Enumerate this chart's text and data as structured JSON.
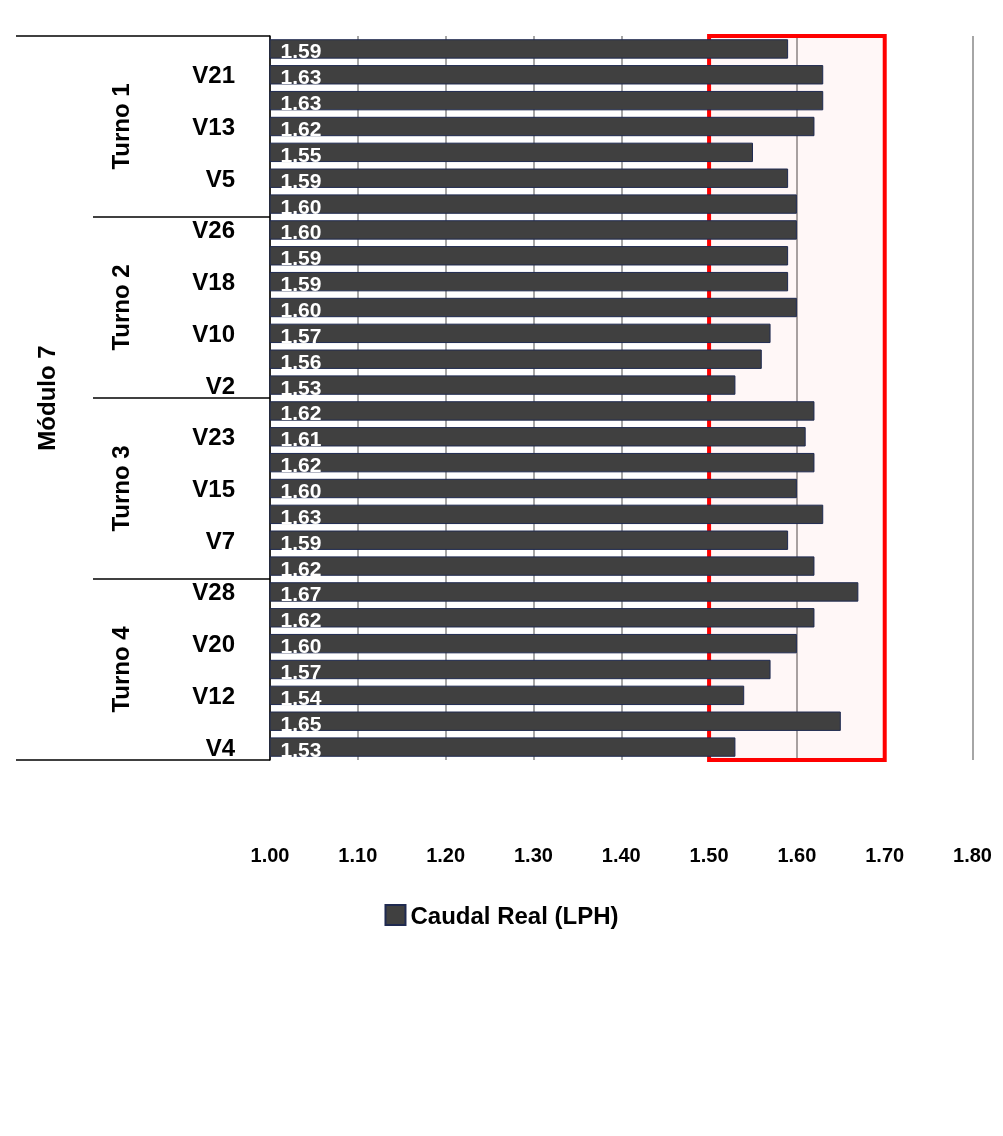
{
  "chart_data": {
    "type": "bar",
    "orientation": "horizontal",
    "categories": [
      null,
      "V21",
      null,
      "V13",
      null,
      "V5",
      null,
      "V26",
      null,
      "V18",
      null,
      "V10",
      null,
      "V2",
      null,
      "V23",
      null,
      "V15",
      null,
      "V7",
      null,
      "V28",
      null,
      "V20",
      null,
      "V12",
      null,
      "V4"
    ],
    "series": [
      {
        "name": "Caudal Real (LPH)",
        "color": "#404040",
        "values": [
          1.59,
          1.63,
          1.63,
          1.62,
          1.55,
          1.59,
          1.6,
          1.6,
          1.59,
          1.59,
          1.6,
          1.57,
          1.56,
          1.53,
          1.62,
          1.61,
          1.62,
          1.6,
          1.63,
          1.59,
          1.62,
          1.67,
          1.62,
          1.6,
          1.57,
          1.54,
          1.65,
          1.53
        ],
        "value_labels": [
          "1.59",
          "1.63",
          "1.63",
          "1.62",
          "1.55",
          "1.59",
          "1.60",
          "1.60",
          "1.59",
          "1.59",
          "1.60",
          "1.57",
          "1.56",
          "1.53",
          "1.62",
          "1.61",
          "1.62",
          "1.60",
          "1.63",
          "1.59",
          "1.62",
          "1.67",
          "1.62",
          "1.60",
          "1.57",
          "1.54",
          "1.65",
          "1.53"
        ]
      }
    ],
    "xlim": [
      1.0,
      1.8
    ],
    "xticks": [
      {
        "value": 1.0,
        "label": "1.00"
      },
      {
        "value": 1.1,
        "label": "1.10"
      },
      {
        "value": 1.2,
        "label": "1.20"
      },
      {
        "value": 1.3,
        "label": "1.30"
      },
      {
        "value": 1.4,
        "label": "1.40"
      },
      {
        "value": 1.5,
        "label": "1.50"
      },
      {
        "value": 1.6,
        "label": "1.60"
      },
      {
        "value": 1.7,
        "label": "1.70"
      },
      {
        "value": 1.8,
        "label": "1.80"
      }
    ],
    "bands": [
      {
        "axis": "x",
        "from": 1.5,
        "to": 1.7,
        "color": "#ff0000"
      }
    ],
    "annotations": [
      "Módulo 7",
      "Turno 1",
      "Turno 2",
      "Turno 3",
      "Turno 4"
    ],
    "grid": "x",
    "legend": "bottom"
  }
}
